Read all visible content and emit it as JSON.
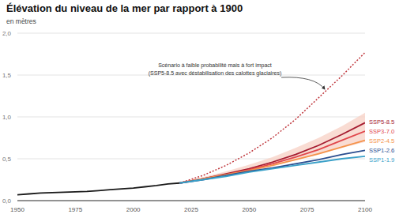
{
  "chart_data": {
    "type": "line",
    "title": "Élévation du niveau de la mer par rapport à 1900",
    "subtitle": "en mètres",
    "annotation": [
      "Scénario à faible probabilité mais à fort impact",
      "(SSP5-8.5 avec déstabilisation des calottes glaciaires)"
    ],
    "xlim": [
      1950,
      2100
    ],
    "xticks": [
      1950,
      1975,
      2000,
      2025,
      2050,
      2075,
      2100
    ],
    "ylim": [
      0,
      2
    ],
    "yticks": [
      {
        "value": 0,
        "label": "0,0"
      },
      {
        "value": 0.5,
        "label": "0,5"
      },
      {
        "value": 1,
        "label": "1,0"
      },
      {
        "value": 1.5,
        "label": "1,5"
      },
      {
        "value": 2,
        "label": "2,0"
      }
    ],
    "grid": true,
    "uncertainty_band": {
      "color": "#f7d3c8",
      "x": [
        2020,
        2030,
        2040,
        2050,
        2060,
        2070,
        2080,
        2090,
        2100
      ],
      "lower": [
        0.21,
        0.25,
        0.3,
        0.35,
        0.41,
        0.48,
        0.55,
        0.63,
        0.7
      ],
      "upper": [
        0.21,
        0.28,
        0.35,
        0.43,
        0.52,
        0.63,
        0.75,
        0.89,
        1.05
      ]
    },
    "series": [
      {
        "color": "#1a1a1a",
        "line_style": "solid",
        "x": [
          1950,
          1955,
          1960,
          1965,
          1970,
          1975,
          1980,
          1985,
          1990,
          1995,
          2000,
          2005,
          2010,
          2015,
          2020
        ],
        "values": [
          0.07,
          0.08,
          0.09,
          0.095,
          0.1,
          0.105,
          0.11,
          0.12,
          0.13,
          0.14,
          0.15,
          0.165,
          0.18,
          0.2,
          0.21
        ]
      },
      {
        "color": "#c0393f",
        "line_style": "dotted",
        "x": [
          2020,
          2030,
          2040,
          2050,
          2060,
          2070,
          2080,
          2090,
          2100
        ],
        "values": [
          0.21,
          0.3,
          0.42,
          0.57,
          0.75,
          0.97,
          1.23,
          1.49,
          1.77
        ]
      },
      {
        "name": "SSP5-8.5",
        "color": "#a51c30",
        "line_style": "solid",
        "x": [
          2020,
          2030,
          2040,
          2050,
          2060,
          2070,
          2080,
          2090,
          2100
        ],
        "values": [
          0.21,
          0.26,
          0.32,
          0.38,
          0.46,
          0.55,
          0.66,
          0.79,
          0.93
        ]
      },
      {
        "name": "SSP3-7.0",
        "color": "#e0474c",
        "line_style": "solid",
        "x": [
          2020,
          2030,
          2040,
          2050,
          2060,
          2070,
          2080,
          2090,
          2100
        ],
        "values": [
          0.21,
          0.26,
          0.31,
          0.37,
          0.44,
          0.52,
          0.61,
          0.72,
          0.83
        ]
      },
      {
        "name": "SSP2-4.5",
        "color": "#f5934a",
        "line_style": "solid",
        "x": [
          2020,
          2030,
          2040,
          2050,
          2060,
          2070,
          2080,
          2090,
          2100
        ],
        "values": [
          0.21,
          0.26,
          0.31,
          0.36,
          0.42,
          0.49,
          0.56,
          0.64,
          0.72
        ]
      },
      {
        "name": "SSP1-2.6",
        "color": "#2a4d8f",
        "line_style": "solid",
        "x": [
          2020,
          2030,
          2040,
          2050,
          2060,
          2070,
          2080,
          2090,
          2100
        ],
        "values": [
          0.21,
          0.25,
          0.3,
          0.35,
          0.39,
          0.44,
          0.49,
          0.55,
          0.6
        ]
      },
      {
        "name": "SSP1-1.9",
        "color": "#3aa0c8",
        "line_style": "solid",
        "x": [
          2020,
          2030,
          2040,
          2050,
          2060,
          2070,
          2080,
          2090,
          2100
        ],
        "values": [
          0.21,
          0.25,
          0.29,
          0.34,
          0.38,
          0.42,
          0.46,
          0.5,
          0.53
        ]
      }
    ]
  }
}
